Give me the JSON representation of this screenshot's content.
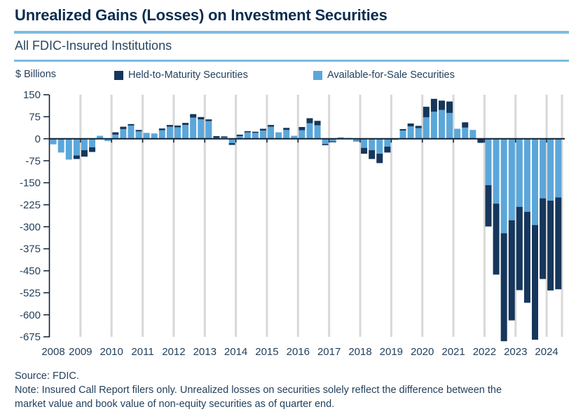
{
  "header": {
    "title": "Unrealized Gains (Losses) on Investment Securities",
    "subtitle": "All FDIC-Insured Institutions"
  },
  "axis_unit_label": "$ Billions",
  "legend": [
    {
      "label": "Held-to-Maturity Securities",
      "color": "#16365B"
    },
    {
      "label": "Available-for-Sale Securities",
      "color": "#5BA7DA"
    }
  ],
  "footer": {
    "source": "Source: FDIC.",
    "note": "Note: Insured Call Report filers only. Unrealized losses on securities solely reflect the difference between the market value and book value of non-equity securities as of quarter end."
  },
  "colors": {
    "title_text": "#0D2D50",
    "body_text": "#23405C",
    "rule_blue": "#7CBCE2",
    "axis_line": "#102236",
    "gridline": "#D8D8D8",
    "htm_navy": "#16365B",
    "afs_blue": "#5BA7DA"
  },
  "chart_data": {
    "type": "bar",
    "stacked": true,
    "title": "Unrealized Gains (Losses) on Investment Securities",
    "subtitle": "All FDIC-Insured Institutions",
    "ylabel": "$ Billions",
    "unit": "USD billions",
    "frequency": "quarterly",
    "x_start": "2008 Q1",
    "x_end": "2024 Q2",
    "x_tick_labels": [
      "2008",
      "2009",
      "2010",
      "2011",
      "2012",
      "2013",
      "2014",
      "2015",
      "2016",
      "2017",
      "2018",
      "2019",
      "2020",
      "2021",
      "2022",
      "2023",
      "2024"
    ],
    "ylim": [
      -675,
      150
    ],
    "yticks": [
      150,
      75,
      0,
      -75,
      -150,
      -225,
      -300,
      -375,
      -450,
      -525,
      -600,
      -675
    ],
    "grid": "vertical lines at year boundaries",
    "legend_position": "top",
    "series": [
      {
        "name": "Held-to-Maturity Securities",
        "color": "#16365B",
        "values": [
          0,
          0,
          0,
          -12,
          -22,
          -16,
          0,
          0,
          8,
          8,
          5,
          5,
          0,
          0,
          6,
          6,
          6,
          7,
          12,
          8,
          6,
          6,
          4,
          -6,
          5,
          4,
          4,
          6,
          6,
          0,
          7,
          0,
          11,
          17,
          15,
          -4,
          -3,
          0,
          0,
          -2,
          -20,
          -30,
          -32,
          -20,
          0,
          5,
          10,
          8,
          36,
          44,
          32,
          39,
          0,
          18,
          0,
          -14,
          -141,
          -242,
          -368,
          -341,
          -284,
          -310,
          -391,
          -275,
          -306,
          -313
        ]
      },
      {
        "name": "Available-for-Sale Securities",
        "color": "#5BA7DA",
        "values": [
          -19,
          -47,
          -71,
          -57,
          -39,
          -29,
          10,
          -8,
          14,
          33,
          45,
          25,
          20,
          18,
          29,
          41,
          39,
          47,
          72,
          66,
          60,
          3,
          4,
          -15,
          9,
          22,
          20,
          28,
          41,
          22,
          30,
          10,
          29,
          53,
          46,
          -18,
          -9,
          5,
          3,
          -7,
          -31,
          -39,
          -51,
          -27,
          -4,
          28,
          42,
          36,
          73,
          92,
          98,
          88,
          34,
          38,
          30,
          0,
          -158,
          -221,
          -322,
          -278,
          -232,
          -249,
          -294,
          -203,
          -211,
          -200
        ]
      }
    ]
  }
}
